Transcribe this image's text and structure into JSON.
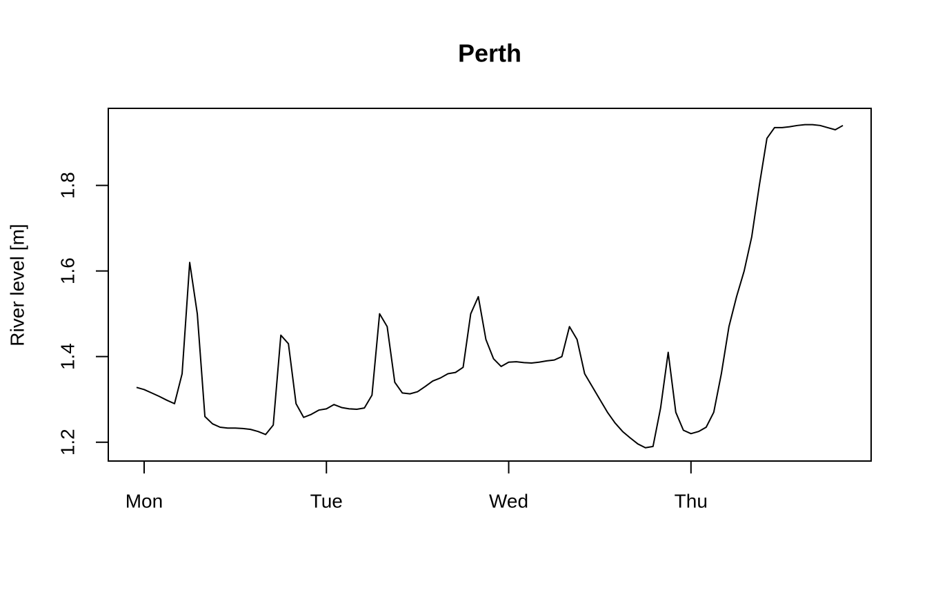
{
  "chart_data": {
    "type": "line",
    "title": "Perth",
    "y_label": "River level [m]",
    "categories": [
      null,
      "Mon",
      null,
      null,
      null,
      null,
      null,
      null,
      null,
      null,
      null,
      null,
      null,
      null,
      null,
      null,
      null,
      null,
      null,
      null,
      null,
      null,
      null,
      null,
      null,
      "Tue",
      null,
      null,
      null,
      null,
      null,
      null,
      null,
      null,
      null,
      null,
      null,
      null,
      null,
      null,
      null,
      null,
      null,
      null,
      null,
      null,
      null,
      null,
      null,
      "Wed",
      null,
      null,
      null,
      null,
      null,
      null,
      null,
      null,
      null,
      null,
      null,
      null,
      null,
      null,
      null,
      null,
      null,
      null,
      null,
      null,
      null,
      null,
      null,
      "Thu",
      null,
      null,
      null,
      null,
      null,
      null,
      null,
      null,
      null,
      null,
      null,
      null,
      null,
      null,
      null,
      null,
      null,
      null,
      null,
      null
    ],
    "values": [
      1.328,
      1.323,
      1.315,
      1.307,
      1.298,
      1.29,
      1.36,
      1.62,
      1.5,
      1.26,
      1.243,
      1.235,
      1.233,
      1.233,
      1.232,
      1.23,
      1.225,
      1.218,
      1.24,
      1.45,
      1.43,
      1.29,
      1.258,
      1.265,
      1.275,
      1.278,
      1.288,
      1.281,
      1.278,
      1.277,
      1.28,
      1.31,
      1.5,
      1.47,
      1.34,
      1.315,
      1.313,
      1.318,
      1.33,
      1.343,
      1.35,
      1.36,
      1.363,
      1.375,
      1.5,
      1.54,
      1.44,
      1.395,
      1.377,
      1.387,
      1.388,
      1.386,
      1.385,
      1.387,
      1.39,
      1.392,
      1.4,
      1.47,
      1.44,
      1.36,
      1.33,
      1.3,
      1.27,
      1.245,
      1.225,
      1.21,
      1.196,
      1.187,
      1.19,
      1.28,
      1.41,
      1.27,
      1.228,
      1.22,
      1.225,
      1.235,
      1.27,
      1.36,
      1.47,
      1.54,
      1.6,
      1.68,
      1.8,
      1.91,
      1.935,
      1.935,
      1.937,
      1.94,
      1.942,
      1.942,
      1.94,
      1.935,
      1.93,
      1.94
    ],
    "color": "#000000",
    "ylim": [
      1.156,
      1.98
    ],
    "yticks": [
      1.2,
      1.4,
      1.6,
      1.8
    ],
    "grid": false
  }
}
